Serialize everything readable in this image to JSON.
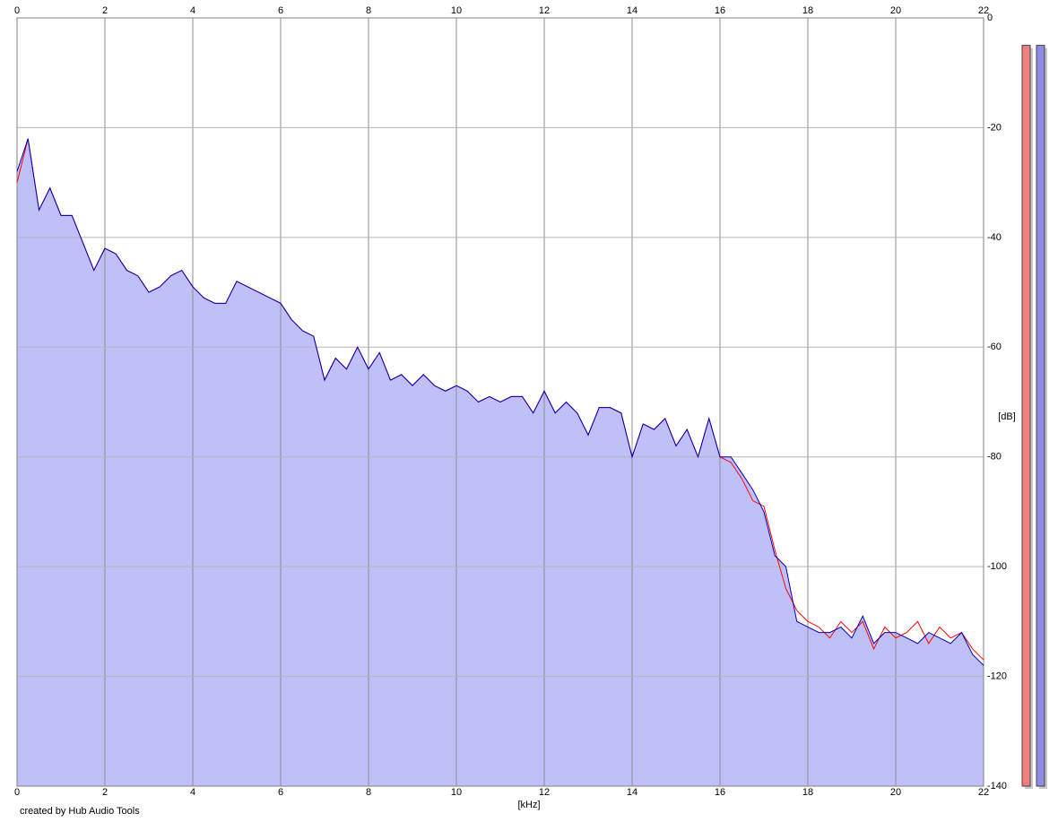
{
  "chart_data": {
    "type": "line",
    "x_label": "[kHz]",
    "y_label": "[dB]",
    "footer": "created by Hub Audio Tools",
    "xlim": [
      0,
      22
    ],
    "ylim": [
      -140,
      0
    ],
    "xticks": [
      0,
      2,
      4,
      6,
      8,
      10,
      12,
      14,
      16,
      18,
      20,
      22
    ],
    "yticks": [
      0,
      -20,
      -40,
      -60,
      -80,
      -100,
      -120,
      -140
    ],
    "grid": true,
    "fill_color": "#c0c0f8",
    "x": [
      0,
      0.25,
      0.5,
      0.75,
      1,
      1.25,
      1.5,
      1.75,
      2,
      2.25,
      2.5,
      2.75,
      3,
      3.25,
      3.5,
      3.75,
      4,
      4.25,
      4.5,
      4.75,
      5,
      5.25,
      5.5,
      5.75,
      6,
      6.25,
      6.5,
      6.75,
      7,
      7.25,
      7.5,
      7.75,
      8,
      8.25,
      8.5,
      8.75,
      9,
      9.25,
      9.5,
      9.75,
      10,
      10.25,
      10.5,
      10.75,
      11,
      11.25,
      11.5,
      11.75,
      12,
      12.25,
      12.5,
      12.75,
      13,
      13.25,
      13.5,
      13.75,
      14,
      14.25,
      14.5,
      14.75,
      15,
      15.25,
      15.5,
      15.75,
      16,
      16.25,
      16.5,
      16.75,
      17,
      17.25,
      17.5,
      17.75,
      18,
      18.25,
      18.5,
      18.75,
      19,
      19.25,
      19.5,
      19.75,
      20,
      20.25,
      20.5,
      20.75,
      21,
      21.25,
      21.5,
      21.75,
      22
    ],
    "series": [
      {
        "color": "#ff0000",
        "values": [
          -30,
          -22,
          -35,
          -31,
          -36,
          -36,
          -41,
          -46,
          -42,
          -43,
          -46,
          -47,
          -50,
          -49,
          -47,
          -46,
          -49,
          -51,
          -52,
          -52,
          -48,
          -49,
          -50,
          -51,
          -52,
          -55,
          -57,
          -58,
          -66,
          -62,
          -64,
          -60,
          -64,
          -61,
          -66,
          -65,
          -67,
          -65,
          -67,
          -68,
          -67,
          -68,
          -70,
          -69,
          -70,
          -69,
          -69,
          -72,
          -68,
          -72,
          -70,
          -72,
          -76,
          -71,
          -71,
          -72,
          -80,
          -74,
          -75,
          -73,
          -78,
          -75,
          -80,
          -73,
          -80,
          -81,
          -84,
          -88,
          -89,
          -97,
          -104,
          -108,
          -110,
          -111,
          -113,
          -110,
          -112,
          -110,
          -115,
          -111,
          -113,
          -112,
          -110,
          -114,
          -111,
          -113,
          -112,
          -115,
          -117
        ]
      },
      {
        "color": "#0000c0",
        "values": [
          -28,
          -22,
          -35,
          -31,
          -36,
          -36,
          -41,
          -46,
          -42,
          -43,
          -46,
          -47,
          -50,
          -49,
          -47,
          -46,
          -49,
          -51,
          -52,
          -52,
          -48,
          -49,
          -50,
          -51,
          -52,
          -55,
          -57,
          -58,
          -66,
          -62,
          -64,
          -60,
          -64,
          -61,
          -66,
          -65,
          -67,
          -65,
          -67,
          -68,
          -67,
          -68,
          -70,
          -69,
          -70,
          -69,
          -69,
          -72,
          -68,
          -72,
          -70,
          -72,
          -76,
          -71,
          -71,
          -72,
          -80,
          -74,
          -75,
          -73,
          -78,
          -75,
          -80,
          -73,
          -80,
          -80,
          -83,
          -86,
          -90,
          -98,
          -100,
          -110,
          -111,
          -112,
          -112,
          -111,
          -113,
          -109,
          -114,
          -112,
          -112,
          -113,
          -114,
          -112,
          -113,
          -114,
          -112,
          -116,
          -118
        ]
      }
    ],
    "meters": [
      {
        "color": "#f08080",
        "value": -5
      },
      {
        "color": "#8c8ce6",
        "value": -5
      }
    ]
  }
}
